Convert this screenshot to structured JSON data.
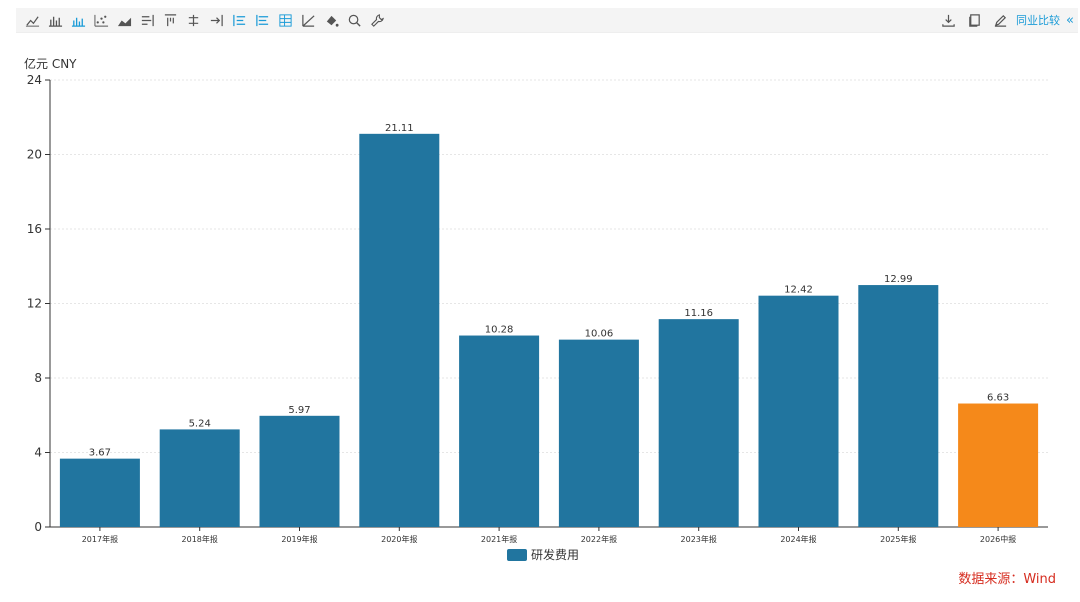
{
  "toolbar": {
    "icons": [
      "line-chart-icon",
      "bar-chart-icon",
      "column-chart-icon",
      "scatter-chart-icon",
      "area-chart-icon",
      "bar-right-icon",
      "align-top-icon",
      "axis-icon",
      "arrow-right-bar-icon",
      "list-left-icon",
      "list-tree-icon",
      "table-icon",
      "trend-line-icon",
      "fill-color-icon",
      "zoom-icon",
      "settings-wrench-icon"
    ],
    "right_icons": [
      "download-icon",
      "copy-icon",
      "edit-icon"
    ],
    "peer_compare_label": "同业比较",
    "collapse_label": "«"
  },
  "unit_label": "亿元  CNY",
  "source_label": "数据来源：Wind",
  "colors": {
    "primary": "#21759f",
    "highlight": "#f5891a",
    "toolbar_accent": "#1a9bd7",
    "source": "#d62d20"
  },
  "chart_data": {
    "type": "bar",
    "categories": [
      "2017年报",
      "2018年报",
      "2019年报",
      "2020年报",
      "2021年报",
      "2022年报",
      "2023年报",
      "2024年报",
      "2025年报",
      "2026中报"
    ],
    "series": [
      {
        "name": "研发费用",
        "values": [
          3.67,
          5.24,
          5.97,
          21.11,
          10.28,
          10.06,
          11.16,
          12.42,
          12.99,
          6.63
        ]
      }
    ],
    "data_labels": [
      "3.67",
      "5.24",
      "5.97",
      "21.11",
      "10.28",
      "10.06",
      "11.16",
      "12.42",
      "12.99",
      "6.63"
    ],
    "highlight_index": 9,
    "ylim": [
      0,
      24
    ],
    "yticks": [
      0,
      4,
      8,
      12,
      16,
      20,
      24
    ],
    "grid": true,
    "legend_position": "bottom-center"
  }
}
